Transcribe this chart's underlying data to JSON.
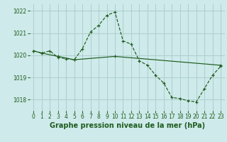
{
  "line1_x": [
    0,
    1,
    2,
    3,
    4,
    5,
    6,
    7,
    8,
    9,
    10,
    11,
    12,
    13,
    14,
    15,
    16,
    17,
    18,
    19,
    20,
    21,
    22,
    23
  ],
  "line1_y": [
    1020.2,
    1020.1,
    1020.2,
    1019.9,
    1019.85,
    1019.8,
    1020.3,
    1021.05,
    1021.35,
    1021.8,
    1021.95,
    1020.65,
    1020.5,
    1019.75,
    1019.55,
    1019.1,
    1018.75,
    1018.1,
    1018.05,
    1017.95,
    1017.9,
    1018.5,
    1019.1,
    1019.5
  ],
  "line2_x": [
    0,
    1,
    3,
    5,
    10,
    23
  ],
  "line2_y": [
    1020.2,
    1020.1,
    1019.95,
    1019.8,
    1019.95,
    1019.55
  ],
  "bg_color": "#ceeaea",
  "grid_color": "#aecece",
  "line_color": "#1e5c1e",
  "ylim": [
    1017.5,
    1022.3
  ],
  "xlim": [
    -0.5,
    23.5
  ],
  "yticks": [
    1018,
    1019,
    1020,
    1021,
    1022
  ],
  "xticks": [
    0,
    1,
    2,
    3,
    4,
    5,
    6,
    7,
    8,
    9,
    10,
    11,
    12,
    13,
    14,
    15,
    16,
    17,
    18,
    19,
    20,
    21,
    22,
    23
  ],
  "xlabel": "Graphe pression niveau de la mer (hPa)",
  "xlabel_fontsize": 7.0,
  "tick_fontsize": 5.5,
  "marker": "+"
}
